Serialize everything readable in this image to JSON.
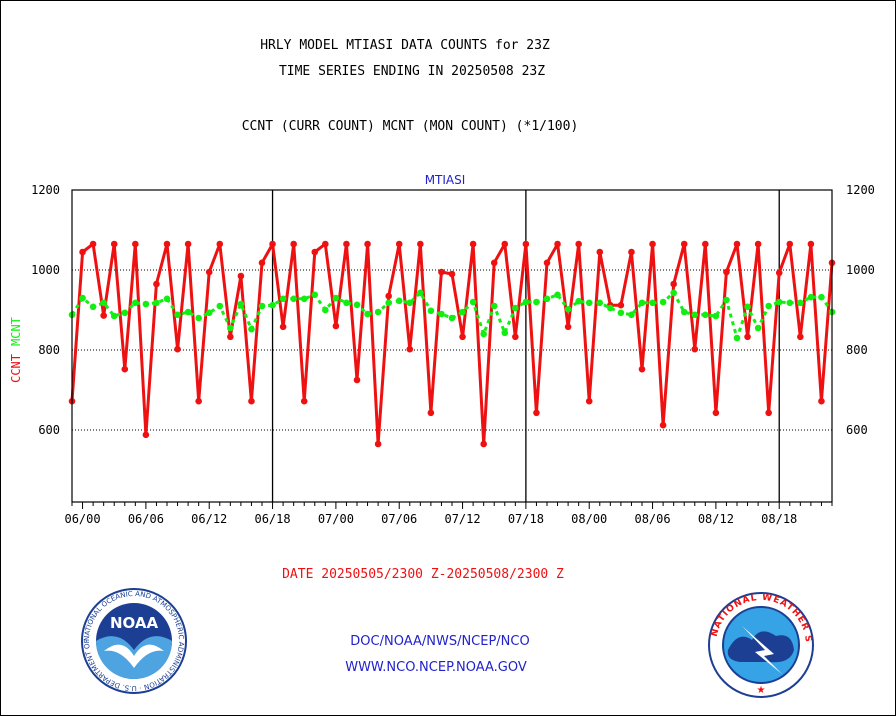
{
  "header": {
    "title_line1": "HRLY MODEL MTIASI DATA COUNTS for 23Z",
    "title_line2": "TIME SERIES ENDING IN 20250508 23Z",
    "subtitle": "CCNT (CURR COUNT) MCNT (MON COUNT) (*1/100)"
  },
  "colors": {
    "ccnt": "#ee1111",
    "mcnt": "#11ee11",
    "credits": "#2222cc",
    "date": "#ee1111"
  },
  "chart_data": {
    "type": "line",
    "title": "MTIASI",
    "ylabel_ccnt": "CCNT",
    "ylabel_mcnt": "MCNT",
    "xlabel": "DATE 20250505/2300 Z-20250508/2300 Z",
    "ylim": [
      420,
      1200
    ],
    "y_ticks": [
      600,
      800,
      1000,
      1200
    ],
    "x_ticks": [
      "06/00",
      "06/06",
      "06/12",
      "06/18",
      "07/00",
      "07/06",
      "07/12",
      "07/18",
      "08/00",
      "08/06",
      "08/12",
      "08/18"
    ],
    "x_tick_hours": [
      1,
      7,
      13,
      19,
      25,
      31,
      37,
      43,
      49,
      55,
      61,
      67
    ],
    "day_boundaries_hours": [
      19,
      43,
      67
    ],
    "x_range_hours": [
      0,
      72
    ],
    "series": [
      {
        "name": "CCNT",
        "color": "#ee1111",
        "x": [
          0,
          1,
          2,
          3,
          4,
          5,
          6,
          7,
          8,
          9,
          10,
          11,
          12,
          13,
          14,
          15,
          16,
          17,
          18,
          19,
          20,
          21,
          22,
          23,
          24,
          25,
          26,
          27,
          28,
          29,
          30,
          31,
          32,
          33,
          34,
          35,
          36,
          37,
          38,
          39,
          40,
          41,
          42,
          43,
          44,
          45,
          46,
          47,
          48,
          49,
          50,
          51,
          52,
          53,
          54,
          55,
          56,
          57,
          58,
          59,
          60,
          61,
          62,
          63,
          64,
          65,
          66,
          67,
          68,
          69,
          70,
          71,
          72
        ],
        "values": [
          672,
          1045,
          1065,
          886,
          1065,
          752,
          1065,
          588,
          965,
          1065,
          802,
          1065,
          672,
          995,
          1065,
          833,
          985,
          672,
          1018,
          1065,
          858,
          1065,
          672,
          1045,
          1065,
          860,
          1065,
          725,
          1065,
          565,
          935,
          1065,
          802,
          1065,
          643,
          995,
          990,
          833,
          1065,
          565,
          1018,
          1065,
          833,
          1065,
          643,
          1018,
          1065,
          858,
          1065,
          672,
          1045,
          912,
          912,
          1045,
          752,
          1065,
          612,
          965,
          1065,
          802,
          1065,
          643,
          995,
          1065,
          833,
          1065,
          643,
          993,
          1065,
          833,
          1065,
          672,
          1018
        ]
      },
      {
        "name": "MCNT",
        "color": "#11ee11",
        "x": [
          0,
          1,
          2,
          3,
          4,
          5,
          6,
          7,
          8,
          9,
          10,
          11,
          12,
          13,
          14,
          15,
          16,
          17,
          18,
          19,
          20,
          21,
          22,
          23,
          24,
          25,
          26,
          27,
          28,
          29,
          30,
          31,
          32,
          33,
          34,
          35,
          36,
          37,
          38,
          39,
          40,
          41,
          42,
          43,
          44,
          45,
          46,
          47,
          48,
          49,
          50,
          51,
          52,
          53,
          54,
          55,
          56,
          57,
          58,
          59,
          60,
          61,
          62,
          63,
          64,
          65,
          66,
          67,
          68,
          69,
          70,
          71,
          72
        ],
        "values": [
          888,
          930,
          908,
          918,
          885,
          893,
          918,
          915,
          918,
          928,
          888,
          895,
          880,
          893,
          910,
          855,
          915,
          852,
          910,
          912,
          928,
          928,
          928,
          938,
          900,
          930,
          918,
          913,
          890,
          895,
          918,
          923,
          918,
          943,
          898,
          890,
          880,
          895,
          920,
          840,
          910,
          843,
          905,
          920,
          920,
          928,
          938,
          902,
          922,
          918,
          918,
          905,
          893,
          888,
          918,
          918,
          920,
          943,
          895,
          888,
          888,
          885,
          925,
          830,
          908,
          855,
          910,
          920,
          918,
          918,
          932,
          932,
          895
        ]
      }
    ]
  },
  "footer": {
    "credits_line1": "DOC/NOAA/NWS/NCEP/NCO",
    "credits_line2": "WWW.NCO.NCEP.NOAA.GOV",
    "noaa_logo_text": "NOAA",
    "noaa_ring_text": "NATIONAL OCEANIC AND ATMOSPHERIC ADMINISTRATION · U.S. DEPARTMENT OF COMMERCE ·",
    "nws_ring_text": "NATIONAL WEATHER SERVICE"
  }
}
